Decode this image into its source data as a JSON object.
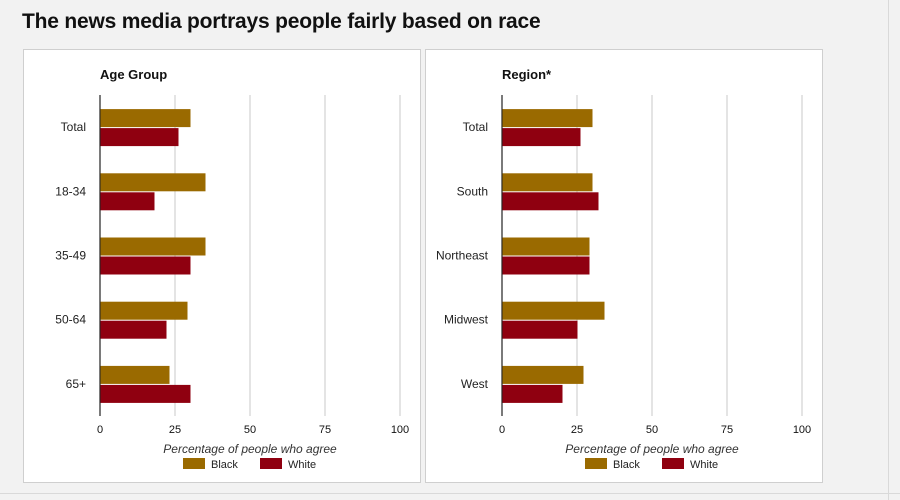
{
  "title": "The news media portrays people fairly based on race",
  "colors": {
    "black": "#9a6a00",
    "white": "#8f0010",
    "grid": "#c8c8c8",
    "axis": "#222222"
  },
  "chart_data": [
    {
      "type": "bar",
      "orientation": "horizontal",
      "title": "Age Group",
      "xlabel": "Percentage of people who agree",
      "ylabel": "",
      "xlim": [
        0,
        100
      ],
      "xticks": [
        "0",
        "25",
        "50",
        "75",
        "100"
      ],
      "grid": true,
      "legend": "bottom",
      "categories": [
        "Total",
        "18-34",
        "35-49",
        "50-64",
        "65+"
      ],
      "series": [
        {
          "name": "Black",
          "color": "#9a6a00",
          "values": [
            30,
            35,
            35,
            29,
            23
          ]
        },
        {
          "name": "White",
          "color": "#8f0010",
          "values": [
            26,
            18,
            30,
            22,
            30
          ]
        }
      ]
    },
    {
      "type": "bar",
      "orientation": "horizontal",
      "title": "Region*",
      "xlabel": "Percentage of people who agree",
      "ylabel": "",
      "xlim": [
        0,
        100
      ],
      "xticks": [
        "0",
        "25",
        "50",
        "75",
        "100"
      ],
      "grid": true,
      "legend": "bottom",
      "categories": [
        "Total",
        "South",
        "Northeast",
        "Midwest",
        "West"
      ],
      "series": [
        {
          "name": "Black",
          "color": "#9a6a00",
          "values": [
            30,
            30,
            29,
            34,
            27
          ]
        },
        {
          "name": "White",
          "color": "#8f0010",
          "values": [
            26,
            32,
            29,
            25,
            20
          ]
        }
      ]
    }
  ]
}
